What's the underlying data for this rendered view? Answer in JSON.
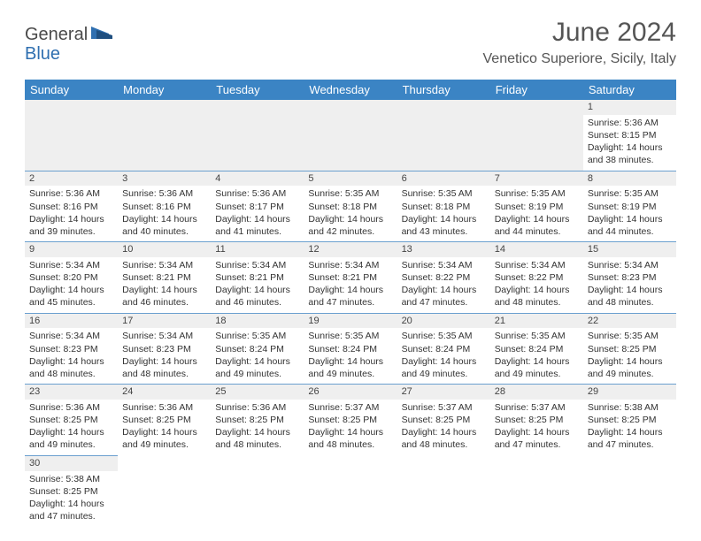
{
  "logo": {
    "general": "General",
    "blue": "Blue"
  },
  "title": "June 2024",
  "location": "Venetico Superiore, Sicily, Italy",
  "colors": {
    "header_bg": "#3b84c4",
    "header_text": "#ffffff",
    "daynum_bg": "#efefef",
    "cell_border": "#6a9fcf",
    "text": "#333333",
    "logo_blue": "#2f6fb0"
  },
  "weekdays": [
    "Sunday",
    "Monday",
    "Tuesday",
    "Wednesday",
    "Thursday",
    "Friday",
    "Saturday"
  ],
  "weeks": [
    [
      null,
      null,
      null,
      null,
      null,
      null,
      {
        "n": "1",
        "sr": "5:36 AM",
        "ss": "8:15 PM",
        "dh": "14",
        "dm": "38"
      }
    ],
    [
      {
        "n": "2",
        "sr": "5:36 AM",
        "ss": "8:16 PM",
        "dh": "14",
        "dm": "39"
      },
      {
        "n": "3",
        "sr": "5:36 AM",
        "ss": "8:16 PM",
        "dh": "14",
        "dm": "40"
      },
      {
        "n": "4",
        "sr": "5:36 AM",
        "ss": "8:17 PM",
        "dh": "14",
        "dm": "41"
      },
      {
        "n": "5",
        "sr": "5:35 AM",
        "ss": "8:18 PM",
        "dh": "14",
        "dm": "42"
      },
      {
        "n": "6",
        "sr": "5:35 AM",
        "ss": "8:18 PM",
        "dh": "14",
        "dm": "43"
      },
      {
        "n": "7",
        "sr": "5:35 AM",
        "ss": "8:19 PM",
        "dh": "14",
        "dm": "44"
      },
      {
        "n": "8",
        "sr": "5:35 AM",
        "ss": "8:19 PM",
        "dh": "14",
        "dm": "44"
      }
    ],
    [
      {
        "n": "9",
        "sr": "5:34 AM",
        "ss": "8:20 PM",
        "dh": "14",
        "dm": "45"
      },
      {
        "n": "10",
        "sr": "5:34 AM",
        "ss": "8:21 PM",
        "dh": "14",
        "dm": "46"
      },
      {
        "n": "11",
        "sr": "5:34 AM",
        "ss": "8:21 PM",
        "dh": "14",
        "dm": "46"
      },
      {
        "n": "12",
        "sr": "5:34 AM",
        "ss": "8:21 PM",
        "dh": "14",
        "dm": "47"
      },
      {
        "n": "13",
        "sr": "5:34 AM",
        "ss": "8:22 PM",
        "dh": "14",
        "dm": "47"
      },
      {
        "n": "14",
        "sr": "5:34 AM",
        "ss": "8:22 PM",
        "dh": "14",
        "dm": "48"
      },
      {
        "n": "15",
        "sr": "5:34 AM",
        "ss": "8:23 PM",
        "dh": "14",
        "dm": "48"
      }
    ],
    [
      {
        "n": "16",
        "sr": "5:34 AM",
        "ss": "8:23 PM",
        "dh": "14",
        "dm": "48"
      },
      {
        "n": "17",
        "sr": "5:34 AM",
        "ss": "8:23 PM",
        "dh": "14",
        "dm": "48"
      },
      {
        "n": "18",
        "sr": "5:35 AM",
        "ss": "8:24 PM",
        "dh": "14",
        "dm": "49"
      },
      {
        "n": "19",
        "sr": "5:35 AM",
        "ss": "8:24 PM",
        "dh": "14",
        "dm": "49"
      },
      {
        "n": "20",
        "sr": "5:35 AM",
        "ss": "8:24 PM",
        "dh": "14",
        "dm": "49"
      },
      {
        "n": "21",
        "sr": "5:35 AM",
        "ss": "8:24 PM",
        "dh": "14",
        "dm": "49"
      },
      {
        "n": "22",
        "sr": "5:35 AM",
        "ss": "8:25 PM",
        "dh": "14",
        "dm": "49"
      }
    ],
    [
      {
        "n": "23",
        "sr": "5:36 AM",
        "ss": "8:25 PM",
        "dh": "14",
        "dm": "49"
      },
      {
        "n": "24",
        "sr": "5:36 AM",
        "ss": "8:25 PM",
        "dh": "14",
        "dm": "49"
      },
      {
        "n": "25",
        "sr": "5:36 AM",
        "ss": "8:25 PM",
        "dh": "14",
        "dm": "48"
      },
      {
        "n": "26",
        "sr": "5:37 AM",
        "ss": "8:25 PM",
        "dh": "14",
        "dm": "48"
      },
      {
        "n": "27",
        "sr": "5:37 AM",
        "ss": "8:25 PM",
        "dh": "14",
        "dm": "48"
      },
      {
        "n": "28",
        "sr": "5:37 AM",
        "ss": "8:25 PM",
        "dh": "14",
        "dm": "47"
      },
      {
        "n": "29",
        "sr": "5:38 AM",
        "ss": "8:25 PM",
        "dh": "14",
        "dm": "47"
      }
    ],
    [
      {
        "n": "30",
        "sr": "5:38 AM",
        "ss": "8:25 PM",
        "dh": "14",
        "dm": "47"
      },
      null,
      null,
      null,
      null,
      null,
      null
    ]
  ],
  "labels": {
    "sunrise": "Sunrise:",
    "sunset": "Sunset:",
    "daylight": "Daylight:",
    "hours": "hours",
    "and": "and",
    "minutes": "minutes."
  }
}
